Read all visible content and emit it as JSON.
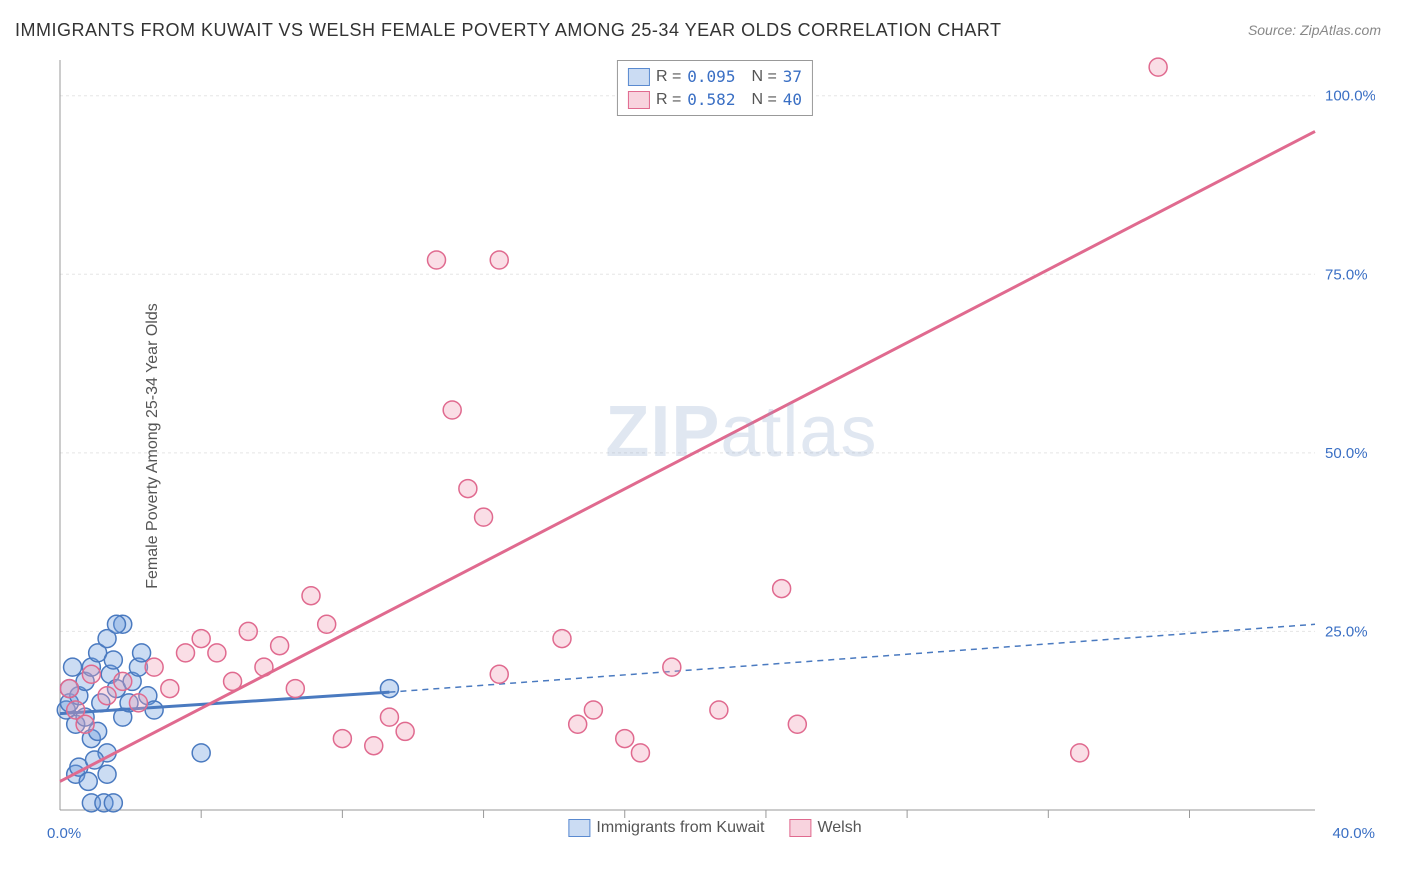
{
  "title": "IMMIGRANTS FROM KUWAIT VS WELSH FEMALE POVERTY AMONG 25-34 YEAR OLDS CORRELATION CHART",
  "source": "Source: ZipAtlas.com",
  "ylabel": "Female Poverty Among 25-34 Year Olds",
  "watermark_bold": "ZIP",
  "watermark_light": "atlas",
  "chart": {
    "type": "scatter",
    "xlim": [
      0,
      40
    ],
    "ylim": [
      0,
      105
    ],
    "x_ticks": [
      0,
      40
    ],
    "x_tick_labels": [
      "0.0%",
      "40.0%"
    ],
    "x_minor_ticks": [
      4.5,
      9,
      13.5,
      18,
      22.5,
      27,
      31.5,
      36
    ],
    "y_ticks": [
      25,
      50,
      75,
      100
    ],
    "y_tick_labels": [
      "25.0%",
      "50.0%",
      "75.0%",
      "100.0%"
    ],
    "background_color": "#ffffff",
    "grid_color": "#e5e5e5",
    "axis_color": "#999999",
    "tick_label_color": "#3a6fc4",
    "marker_radius": 9,
    "marker_opacity": 0.35,
    "series": [
      {
        "name": "Immigrants from Kuwait",
        "color_fill": "#6a9adc",
        "color_stroke": "#4a7ac0",
        "r_value": "0.095",
        "n_value": "37",
        "points": [
          [
            0.2,
            14
          ],
          [
            0.3,
            15
          ],
          [
            0.5,
            12
          ],
          [
            0.6,
            16
          ],
          [
            0.8,
            13
          ],
          [
            0.8,
            18
          ],
          [
            1.0,
            20
          ],
          [
            1.0,
            10
          ],
          [
            1.2,
            11
          ],
          [
            1.2,
            22
          ],
          [
            1.3,
            15
          ],
          [
            1.5,
            24
          ],
          [
            1.5,
            8
          ],
          [
            1.6,
            19
          ],
          [
            1.7,
            21
          ],
          [
            1.8,
            17
          ],
          [
            2.0,
            26
          ],
          [
            2.0,
            13
          ],
          [
            2.2,
            15
          ],
          [
            2.3,
            18
          ],
          [
            2.5,
            20
          ],
          [
            2.6,
            22
          ],
          [
            2.8,
            16
          ],
          [
            3.0,
            14
          ],
          [
            1.0,
            1
          ],
          [
            1.4,
            1
          ],
          [
            1.7,
            1
          ],
          [
            4.5,
            8
          ],
          [
            0.5,
            5
          ],
          [
            0.6,
            6
          ],
          [
            0.9,
            4
          ],
          [
            1.1,
            7
          ],
          [
            1.5,
            5
          ],
          [
            0.3,
            17
          ],
          [
            0.4,
            20
          ],
          [
            10.5,
            17
          ],
          [
            1.8,
            26
          ]
        ],
        "trend": {
          "x1": 0,
          "y1": 13.5,
          "x2": 10.5,
          "y2": 16.5,
          "width": 3,
          "dash": "none"
        },
        "trend_ext": {
          "x1": 10.5,
          "y1": 16.5,
          "x2": 40,
          "y2": 26,
          "width": 1.5,
          "dash": "6,5"
        }
      },
      {
        "name": "Welsh",
        "color_fill": "#f0a0b8",
        "color_stroke": "#e06a8f",
        "r_value": "0.582",
        "n_value": "40",
        "points": [
          [
            0.3,
            17
          ],
          [
            0.5,
            14
          ],
          [
            0.8,
            12
          ],
          [
            1.0,
            19
          ],
          [
            1.5,
            16
          ],
          [
            2.0,
            18
          ],
          [
            2.5,
            15
          ],
          [
            3.0,
            20
          ],
          [
            3.5,
            17
          ],
          [
            4.0,
            22
          ],
          [
            4.5,
            24
          ],
          [
            5.0,
            22
          ],
          [
            5.5,
            18
          ],
          [
            6.0,
            25
          ],
          [
            6.5,
            20
          ],
          [
            7.0,
            23
          ],
          [
            8.0,
            30
          ],
          [
            8.5,
            26
          ],
          [
            9.0,
            10
          ],
          [
            10.0,
            9
          ],
          [
            10.5,
            13
          ],
          [
            11.0,
            11
          ],
          [
            12.0,
            77
          ],
          [
            12.5,
            56
          ],
          [
            13.0,
            45
          ],
          [
            13.5,
            41
          ],
          [
            14.0,
            77
          ],
          [
            14.0,
            19
          ],
          [
            16.0,
            24
          ],
          [
            16.5,
            12
          ],
          [
            17.0,
            14
          ],
          [
            18.0,
            10
          ],
          [
            18.5,
            8
          ],
          [
            19.5,
            20
          ],
          [
            21.0,
            14
          ],
          [
            23.0,
            31
          ],
          [
            23.5,
            12
          ],
          [
            32.5,
            8
          ],
          [
            35.0,
            104
          ],
          [
            7.5,
            17
          ]
        ],
        "trend": {
          "x1": 0,
          "y1": 4,
          "x2": 40,
          "y2": 95,
          "width": 3,
          "dash": "none"
        }
      }
    ],
    "legend_bottom": [
      {
        "label": "Immigrants from Kuwait",
        "swatch": "blue"
      },
      {
        "label": "Welsh",
        "swatch": "pink"
      }
    ]
  }
}
